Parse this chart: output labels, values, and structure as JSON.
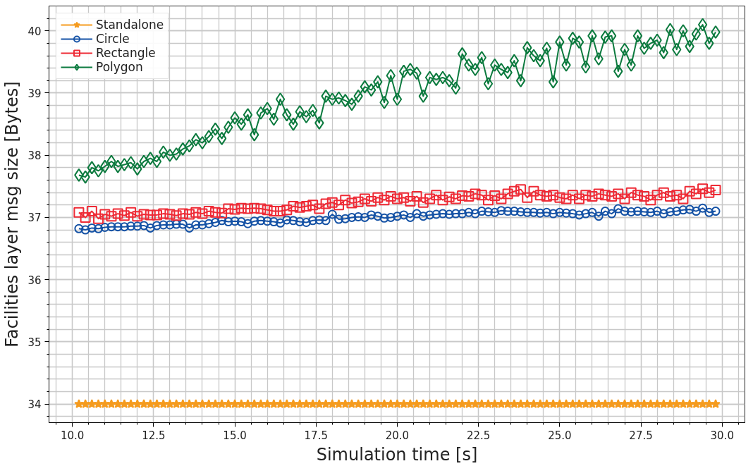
{
  "chart_data": {
    "type": "line",
    "xlabel": "Simulation time [s]",
    "ylabel": "Facilities layer msg size [Bytes]",
    "xlim": [
      9.28,
      30.7
    ],
    "ylim": [
      33.7,
      40.4
    ],
    "xticks": [
      {
        "value": 10,
        "label": "10.0"
      },
      12.5,
      {
        "value": 15,
        "label": "15.0"
      },
      17.5,
      {
        "value": 20,
        "label": "20.0"
      },
      22.5,
      {
        "value": 25,
        "label": "25.0"
      },
      27.5,
      {
        "value": 30,
        "label": "30.0"
      }
    ],
    "yticks": [
      34,
      35,
      36,
      37,
      38,
      39,
      40
    ],
    "grid": true,
    "legend": "top left",
    "x": [
      10.2,
      10.4,
      10.6,
      10.8,
      11.0,
      11.2,
      11.4,
      11.6,
      11.8,
      12.0,
      12.2,
      12.4,
      12.6,
      12.8,
      13.0,
      13.2,
      13.4,
      13.6,
      13.8,
      14.0,
      14.2,
      14.4,
      14.6,
      14.8,
      15.0,
      15.2,
      15.4,
      15.6,
      15.8,
      16.0,
      16.2,
      16.4,
      16.6,
      16.8,
      17.0,
      17.2,
      17.4,
      17.6,
      17.8,
      18.0,
      18.2,
      18.4,
      18.6,
      18.8,
      19.0,
      19.2,
      19.4,
      19.6,
      19.8,
      20.0,
      20.2,
      20.4,
      20.6,
      20.8,
      21.0,
      21.2,
      21.4,
      21.6,
      21.8,
      22.0,
      22.2,
      22.4,
      22.6,
      22.8,
      23.0,
      23.2,
      23.4,
      23.6,
      23.8,
      24.0,
      24.2,
      24.4,
      24.6,
      24.8,
      25.0,
      25.2,
      25.4,
      25.6,
      25.8,
      26.0,
      26.2,
      26.4,
      26.6,
      26.8,
      27.0,
      27.2,
      27.4,
      27.6,
      27.8,
      28.0,
      28.2,
      28.4,
      28.6,
      28.8,
      29.0,
      29.2,
      29.4,
      29.6,
      29.8
    ],
    "series": [
      {
        "name": "Standalone",
        "color": "#f59b1e",
        "marker": "star",
        "values": [
          34,
          34,
          34,
          34,
          34,
          34,
          34,
          34,
          34,
          34,
          34,
          34,
          34,
          34,
          34,
          34,
          34,
          34,
          34,
          34,
          34,
          34,
          34,
          34,
          34,
          34,
          34,
          34,
          34,
          34,
          34,
          34,
          34,
          34,
          34,
          34,
          34,
          34,
          34,
          34,
          34,
          34,
          34,
          34,
          34,
          34,
          34,
          34,
          34,
          34,
          34,
          34,
          34,
          34,
          34,
          34,
          34,
          34,
          34,
          34,
          34,
          34,
          34,
          34,
          34,
          34,
          34,
          34,
          34,
          34,
          34,
          34,
          34,
          34,
          34,
          34,
          34,
          34,
          34,
          34,
          34,
          34,
          34,
          34,
          34,
          34,
          34,
          34,
          34,
          34,
          34,
          34,
          34,
          34,
          34,
          34,
          34,
          34,
          34
        ]
      },
      {
        "name": "Circle",
        "color": "#1552a5",
        "marker": "circle",
        "values": [
          36.82,
          36.8,
          36.83,
          36.82,
          36.84,
          36.85,
          36.85,
          36.85,
          36.86,
          36.86,
          36.87,
          36.83,
          36.87,
          36.88,
          36.88,
          36.89,
          36.89,
          36.83,
          36.88,
          36.88,
          36.9,
          36.92,
          36.95,
          36.93,
          36.94,
          36.93,
          36.9,
          36.94,
          36.95,
          36.94,
          36.93,
          36.91,
          36.96,
          36.95,
          36.93,
          36.92,
          36.95,
          36.96,
          36.95,
          37.05,
          36.97,
          36.98,
          37.0,
          37.01,
          37.0,
          37.04,
          37.02,
          36.99,
          37.0,
          37.02,
          37.04,
          37.0,
          37.06,
          37.02,
          37.04,
          37.05,
          37.06,
          37.05,
          37.06,
          37.06,
          37.08,
          37.06,
          37.1,
          37.09,
          37.08,
          37.11,
          37.1,
          37.1,
          37.09,
          37.08,
          37.08,
          37.07,
          37.08,
          37.06,
          37.08,
          37.07,
          37.06,
          37.04,
          37.06,
          37.08,
          37.02,
          37.1,
          37.06,
          37.14,
          37.1,
          37.09,
          37.1,
          37.09,
          37.08,
          37.1,
          37.06,
          37.09,
          37.1,
          37.12,
          37.13,
          37.1,
          37.15,
          37.08,
          37.1
        ]
      },
      {
        "name": "Rectangle",
        "color": "#ee2a35",
        "marker": "square",
        "values": [
          37.08,
          37.0,
          37.1,
          36.98,
          37.05,
          37.02,
          37.06,
          37.03,
          37.08,
          37.02,
          37.05,
          37.04,
          37.04,
          37.06,
          37.05,
          37.03,
          37.06,
          37.05,
          37.08,
          37.06,
          37.1,
          37.08,
          37.07,
          37.14,
          37.13,
          37.15,
          37.14,
          37.15,
          37.14,
          37.12,
          37.1,
          37.1,
          37.12,
          37.18,
          37.16,
          37.18,
          37.2,
          37.14,
          37.22,
          37.24,
          37.2,
          37.28,
          37.23,
          37.25,
          37.3,
          37.26,
          37.32,
          37.28,
          37.34,
          37.3,
          37.32,
          37.26,
          37.34,
          37.24,
          37.3,
          37.36,
          37.28,
          37.33,
          37.3,
          37.35,
          37.34,
          37.38,
          37.36,
          37.28,
          37.35,
          37.3,
          37.38,
          37.42,
          37.45,
          37.32,
          37.42,
          37.36,
          37.34,
          37.36,
          37.32,
          37.3,
          37.36,
          37.3,
          37.36,
          37.34,
          37.38,
          37.36,
          37.34,
          37.38,
          37.3,
          37.4,
          37.36,
          37.34,
          37.28,
          37.36,
          37.4,
          37.34,
          37.36,
          37.3,
          37.42,
          37.38,
          37.46,
          37.4,
          37.44
        ]
      },
      {
        "name": "Polygon",
        "color": "#0b7a3e",
        "marker": "diamond",
        "values": [
          37.68,
          37.65,
          37.8,
          37.75,
          37.82,
          37.9,
          37.82,
          37.85,
          37.88,
          37.78,
          37.9,
          37.95,
          37.9,
          38.05,
          38.0,
          38.02,
          38.1,
          38.15,
          38.25,
          38.2,
          38.3,
          38.42,
          38.27,
          38.45,
          38.6,
          38.5,
          38.65,
          38.33,
          38.68,
          38.75,
          38.58,
          38.9,
          38.65,
          38.5,
          38.7,
          38.62,
          38.72,
          38.52,
          38.95,
          38.9,
          38.92,
          38.88,
          38.82,
          38.95,
          39.1,
          39.05,
          39.18,
          38.85,
          39.28,
          38.9,
          39.35,
          39.38,
          39.32,
          38.95,
          39.25,
          39.22,
          39.25,
          39.2,
          39.08,
          39.63,
          39.45,
          39.38,
          39.57,
          39.15,
          39.45,
          39.38,
          39.33,
          39.52,
          39.2,
          39.73,
          39.6,
          39.52,
          39.72,
          39.18,
          39.82,
          39.45,
          39.88,
          39.82,
          39.42,
          39.92,
          39.55,
          39.9,
          39.92,
          39.35,
          39.7,
          39.45,
          39.92,
          39.72,
          39.8,
          39.85,
          39.65,
          40.02,
          39.7,
          40.0,
          39.75,
          39.95,
          40.1,
          39.8,
          39.98
        ]
      }
    ]
  }
}
